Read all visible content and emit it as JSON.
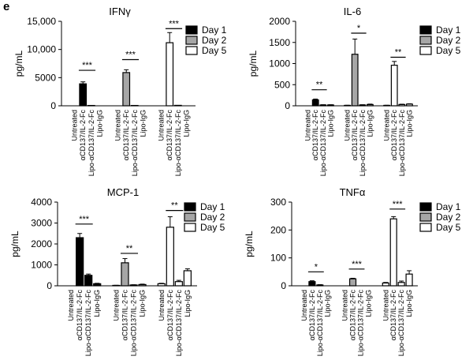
{
  "panel_label": "e",
  "colors": {
    "day1": "#000000",
    "day2": "#a6a6a6",
    "day5": "#ffffff",
    "stroke": "#000000"
  },
  "chart_data": [
    {
      "type": "bar",
      "title": "IFNγ",
      "ylabel": "pg/mL",
      "ylim": [
        0,
        15000
      ],
      "yticks": [
        0,
        5000,
        10000,
        15000
      ],
      "ytick_labels": [
        "0",
        "5000",
        "10,000",
        "15,000"
      ],
      "legend": [
        "Day 1",
        "Day 2",
        "Day 5"
      ],
      "legend_position": "top-right",
      "groups": [
        {
          "day": "Day 1",
          "categories": [
            "Untreated",
            "αCD137/IL-2-Fc",
            "Lipo-αCD137/IL-2-Fc",
            "Lipo-IgG"
          ],
          "values": [
            0,
            3900,
            60,
            0
          ],
          "errors": [
            0,
            350,
            0,
            0
          ]
        },
        {
          "day": "Day 2",
          "categories": [
            "Untreated",
            "αCD137/IL-2-Fc",
            "Lipo-αCD137/IL-2-Fc",
            "Lipo-IgG"
          ],
          "values": [
            0,
            5900,
            60,
            0
          ],
          "errors": [
            0,
            500,
            0,
            0
          ]
        },
        {
          "day": "Day 5",
          "categories": [
            "Untreated",
            "αCD137/IL-2-Fc",
            "Lipo-αCD137/IL-2-Fc",
            "Lipo-IgG"
          ],
          "values": [
            0,
            11200,
            80,
            0
          ],
          "errors": [
            0,
            1800,
            0,
            0
          ]
        }
      ],
      "annotations": [
        {
          "group": 0,
          "from": 1,
          "to": 2,
          "text": "***",
          "y": 6300
        },
        {
          "group": 1,
          "from": 1,
          "to": 2,
          "text": "***",
          "y": 8200
        },
        {
          "group": 2,
          "from": 1,
          "to": 2,
          "text": "***",
          "y": 13700
        }
      ]
    },
    {
      "type": "bar",
      "title": "IL-6",
      "ylabel": "pg/mL",
      "ylim": [
        0,
        2000
      ],
      "yticks": [
        0,
        500,
        1000,
        1500,
        2000
      ],
      "ytick_labels": [
        "0",
        "500",
        "1000",
        "1500",
        "2000"
      ],
      "legend": [
        "Day 1",
        "Day 2",
        "Day 5"
      ],
      "legend_position": "top-right",
      "groups": [
        {
          "day": "Day 1",
          "categories": [
            "Untreated",
            "αCD137/IL-2-Fc",
            "Lipo-αCD137/IL-2-Fc",
            "Lipo-IgG"
          ],
          "values": [
            0,
            140,
            20,
            20
          ],
          "errors": [
            0,
            20,
            5,
            5
          ]
        },
        {
          "day": "Day 2",
          "categories": [
            "Untreated",
            "αCD137/IL-2-Fc",
            "Lipo-αCD137/IL-2-Fc",
            "Lipo-IgG"
          ],
          "values": [
            10,
            1220,
            20,
            30
          ],
          "errors": [
            3,
            360,
            5,
            10
          ]
        },
        {
          "day": "Day 5",
          "categories": [
            "Untreated",
            "αCD137/IL-2-Fc",
            "Lipo-αCD137/IL-2-Fc",
            "Lipo-IgG"
          ],
          "values": [
            10,
            960,
            30,
            40
          ],
          "errors": [
            3,
            90,
            8,
            8
          ]
        }
      ],
      "annotations": [
        {
          "group": 0,
          "from": 1,
          "to": 2,
          "text": "**",
          "y": 380
        },
        {
          "group": 1,
          "from": 1,
          "to": 2,
          "text": "*",
          "y": 1720
        },
        {
          "group": 2,
          "from": 1,
          "to": 2,
          "text": "**",
          "y": 1150
        }
      ]
    },
    {
      "type": "bar",
      "title": "MCP-1",
      "ylabel": "pg/mL",
      "ylim": [
        0,
        4000
      ],
      "yticks": [
        0,
        1000,
        2000,
        3000,
        4000
      ],
      "ytick_labels": [
        "0",
        "1000",
        "2000",
        "3000",
        "4000"
      ],
      "legend": [
        "Day 1",
        "Day 2",
        "Day 5"
      ],
      "legend_position": "top-right",
      "groups": [
        {
          "day": "Day 1",
          "categories": [
            "Untreated",
            "αCD137/IL-2-Fc",
            "Lipo-αCD137/IL-2-Fc",
            "Lipo-IgG"
          ],
          "values": [
            0,
            2300,
            500,
            100
          ],
          "errors": [
            0,
            200,
            60,
            20
          ]
        },
        {
          "day": "Day 2",
          "categories": [
            "Untreated",
            "αCD137/IL-2-Fc",
            "Lipo-αCD137/IL-2-Fc",
            "Lipo-IgG"
          ],
          "values": [
            20,
            1100,
            40,
            60
          ],
          "errors": [
            5,
            200,
            10,
            20
          ]
        },
        {
          "day": "Day 5",
          "categories": [
            "Untreated",
            "αCD137/IL-2-Fc",
            "Lipo-αCD137/IL-2-Fc",
            "Lipo-IgG"
          ],
          "values": [
            100,
            2800,
            200,
            720
          ],
          "errors": [
            20,
            500,
            60,
            90
          ]
        }
      ],
      "annotations": [
        {
          "group": 0,
          "from": 1,
          "to": 2,
          "text": "***",
          "y": 2950
        },
        {
          "group": 1,
          "from": 1,
          "to": 2,
          "text": "**",
          "y": 1550
        },
        {
          "group": 2,
          "from": 1,
          "to": 2,
          "text": "**",
          "y": 3600
        }
      ]
    },
    {
      "type": "bar",
      "title": "TNFα",
      "ylabel": "pg/mL",
      "ylim": [
        0,
        300
      ],
      "yticks": [
        0,
        100,
        200,
        300
      ],
      "ytick_labels": [
        "0",
        "100",
        "200",
        "300"
      ],
      "legend": [
        "Day 1",
        "Day 2",
        "Day 5"
      ],
      "legend_position": "top-right",
      "groups": [
        {
          "day": "Day 1",
          "categories": [
            "Untreated",
            "αCD137/IL-2-Fc",
            "Lipo-αCD137/IL-2-Fc",
            "Lipo-IgG"
          ],
          "values": [
            0,
            15,
            3,
            0
          ],
          "errors": [
            0,
            3,
            1,
            0
          ]
        },
        {
          "day": "Day 2",
          "categories": [
            "Untreated",
            "αCD137/IL-2-Fc",
            "Lipo-αCD137/IL-2-Fc",
            "Lipo-IgG"
          ],
          "values": [
            0,
            25,
            0,
            0
          ],
          "errors": [
            0,
            2,
            0,
            0
          ]
        },
        {
          "day": "Day 5",
          "categories": [
            "Untreated",
            "αCD137/IL-2-Fc",
            "Lipo-αCD137/IL-2-Fc",
            "Lipo-IgG"
          ],
          "values": [
            10,
            240,
            12,
            42
          ],
          "errors": [
            2,
            8,
            5,
            12
          ]
        }
      ],
      "annotations": [
        {
          "group": 0,
          "from": 1,
          "to": 2,
          "text": "*",
          "y": 50
        },
        {
          "group": 1,
          "from": 1,
          "to": 2,
          "text": "***",
          "y": 60
        },
        {
          "group": 2,
          "from": 1,
          "to": 2,
          "text": "***",
          "y": 275
        }
      ]
    }
  ]
}
